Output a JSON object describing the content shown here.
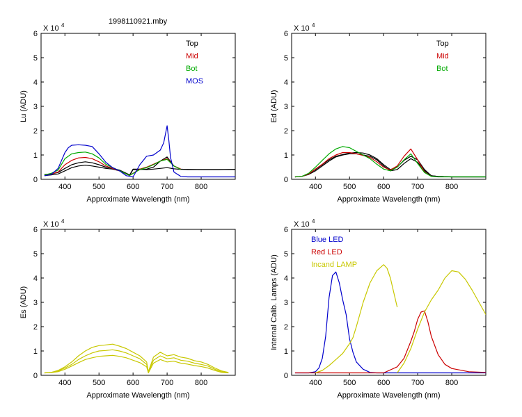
{
  "figure_title": "1998110921.mby",
  "colors": {
    "top": "#000000",
    "mid": "#cc0000",
    "bot": "#00aa00",
    "mos": "#0000cc",
    "es": "#c8c800",
    "blue_led": "#0000cc",
    "red_led": "#cc0000",
    "incand": "#c8c800"
  },
  "chart_data": [
    {
      "id": "lu",
      "type": "line",
      "ylabel": "Lu (ADU)",
      "xlabel": "Approximate Wavelength (nm)",
      "y_exponent_label": "X 10",
      "y_exponent_power": "4",
      "xlim": [
        330,
        900
      ],
      "ylim": [
        0,
        6
      ],
      "xticks": [
        400,
        500,
        600,
        700,
        800
      ],
      "yticks": [
        0,
        1,
        2,
        3,
        4,
        5,
        6
      ],
      "legend_position": "top-right",
      "legend": [
        {
          "label": "Top",
          "color": "#000000"
        },
        {
          "label": "Mid",
          "color": "#cc0000"
        },
        {
          "label": "Bot",
          "color": "#00aa00"
        },
        {
          "label": "MOS",
          "color": "#0000cc"
        }
      ],
      "series": [
        {
          "name": "Top",
          "color": "#000000",
          "x": [
            340,
            360,
            380,
            400,
            420,
            440,
            460,
            480,
            500,
            520,
            540,
            560,
            580,
            590,
            600,
            620,
            640,
            660,
            680,
            700,
            720,
            740,
            760,
            800,
            850,
            900
          ],
          "y": [
            0.2,
            0.22,
            0.28,
            0.45,
            0.6,
            0.68,
            0.72,
            0.68,
            0.6,
            0.5,
            0.45,
            0.38,
            0.25,
            0.18,
            0.42,
            0.42,
            0.4,
            0.42,
            0.45,
            0.48,
            0.43,
            0.41,
            0.41,
            0.4,
            0.4,
            0.41
          ]
        },
        {
          "name": "Top-2",
          "color": "#000000",
          "x": [
            340,
            360,
            380,
            400,
            420,
            440,
            460,
            480,
            500,
            520,
            540,
            560,
            580,
            590,
            600,
            620,
            640,
            660,
            680,
            700,
            720,
            740,
            760,
            800,
            850,
            900
          ],
          "y": [
            0.15,
            0.18,
            0.22,
            0.35,
            0.48,
            0.55,
            0.58,
            0.55,
            0.5,
            0.45,
            0.42,
            0.35,
            0.22,
            0.16,
            0.4,
            0.4,
            0.42,
            0.5,
            0.75,
            0.92,
            0.55,
            0.42,
            0.4,
            0.4,
            0.4,
            0.41
          ]
        },
        {
          "name": "Mid",
          "color": "#cc0000",
          "x": [
            340,
            360,
            380,
            400,
            420,
            440,
            460,
            480,
            500,
            520,
            540,
            560,
            580,
            590,
            620,
            640,
            660,
            680,
            700,
            720,
            740
          ],
          "y": [
            0.18,
            0.22,
            0.3,
            0.6,
            0.78,
            0.88,
            0.9,
            0.85,
            0.72,
            0.55,
            0.45,
            0.35,
            0.22,
            0.16,
            0.42,
            0.5,
            0.62,
            0.75,
            0.85,
            0.55,
            0.42
          ]
        },
        {
          "name": "Bot",
          "color": "#00aa00",
          "x": [
            340,
            360,
            380,
            400,
            420,
            440,
            460,
            480,
            500,
            520,
            540,
            560,
            580,
            590,
            620,
            640,
            660,
            680,
            700,
            720,
            740
          ],
          "y": [
            0.18,
            0.25,
            0.38,
            0.85,
            1.05,
            1.1,
            1.12,
            1.05,
            0.88,
            0.62,
            0.48,
            0.36,
            0.22,
            0.16,
            0.4,
            0.48,
            0.6,
            0.75,
            0.82,
            0.55,
            0.4
          ]
        },
        {
          "name": "MOS",
          "color": "#0000cc",
          "x": [
            340,
            360,
            380,
            400,
            410,
            420,
            440,
            460,
            480,
            500,
            520,
            540,
            560,
            580,
            600,
            620,
            640,
            660,
            680,
            690,
            700,
            705,
            710,
            720,
            740,
            760,
            800,
            850,
            900
          ],
          "y": [
            0.15,
            0.2,
            0.45,
            1.1,
            1.3,
            1.4,
            1.42,
            1.4,
            1.35,
            1.05,
            0.7,
            0.48,
            0.35,
            0.15,
            0.1,
            0.6,
            0.95,
            1.0,
            1.2,
            1.5,
            2.2,
            1.6,
            0.9,
            0.3,
            0.12,
            0.1,
            0.1,
            0.1,
            0.1
          ]
        }
      ]
    },
    {
      "id": "ed",
      "type": "line",
      "ylabel": "Ed  (ADU)",
      "xlabel": "Approximate Wavelength (nm)",
      "y_exponent_label": "X 10",
      "y_exponent_power": "4",
      "xlim": [
        330,
        900
      ],
      "ylim": [
        0,
        6
      ],
      "xticks": [
        400,
        500,
        600,
        700,
        800
      ],
      "yticks": [
        0,
        1,
        2,
        3,
        4,
        5,
        6
      ],
      "legend_position": "top-right",
      "legend": [
        {
          "label": "Top",
          "color": "#000000"
        },
        {
          "label": "Mid",
          "color": "#cc0000"
        },
        {
          "label": "Bot",
          "color": "#00aa00"
        }
      ],
      "series": [
        {
          "name": "Top",
          "color": "#000000",
          "x": [
            340,
            360,
            380,
            400,
            420,
            440,
            460,
            480,
            500,
            520,
            540,
            560,
            580,
            600,
            620,
            640,
            660,
            680,
            700,
            720,
            740,
            760,
            800,
            850,
            900
          ],
          "y": [
            0.1,
            0.12,
            0.2,
            0.35,
            0.55,
            0.75,
            0.92,
            1.0,
            1.05,
            1.05,
            1.0,
            0.95,
            0.8,
            0.55,
            0.35,
            0.4,
            0.65,
            0.85,
            0.7,
            0.35,
            0.15,
            0.12,
            0.1,
            0.1,
            0.1
          ]
        },
        {
          "name": "Top-2",
          "color": "#000000",
          "x": [
            340,
            360,
            380,
            400,
            420,
            440,
            460,
            480,
            500,
            520,
            540,
            560,
            580,
            600,
            620,
            640,
            660,
            680,
            700,
            720,
            740,
            760,
            800,
            850,
            900
          ],
          "y": [
            0.1,
            0.12,
            0.22,
            0.4,
            0.6,
            0.8,
            0.95,
            1.02,
            1.08,
            1.1,
            1.08,
            1.0,
            0.85,
            0.6,
            0.4,
            0.5,
            0.78,
            0.95,
            0.8,
            0.4,
            0.15,
            0.12,
            0.1,
            0.1,
            0.1
          ]
        },
        {
          "name": "Mid",
          "color": "#cc0000",
          "x": [
            340,
            360,
            380,
            400,
            420,
            440,
            460,
            480,
            500,
            520,
            540,
            560,
            580,
            600,
            620,
            640,
            660,
            680,
            700,
            720,
            740
          ],
          "y": [
            0.1,
            0.12,
            0.22,
            0.42,
            0.62,
            0.85,
            1.0,
            1.1,
            1.1,
            1.05,
            0.98,
            0.9,
            0.72,
            0.5,
            0.38,
            0.55,
            0.95,
            1.25,
            0.8,
            0.3,
            0.12
          ]
        },
        {
          "name": "Bot",
          "color": "#00aa00",
          "x": [
            340,
            360,
            380,
            400,
            420,
            440,
            460,
            480,
            500,
            520,
            540,
            560,
            580,
            600,
            620,
            640,
            660,
            680,
            700,
            720,
            740,
            760,
            800,
            850,
            900
          ],
          "y": [
            0.1,
            0.12,
            0.25,
            0.5,
            0.78,
            1.05,
            1.25,
            1.35,
            1.3,
            1.15,
            1.0,
            0.85,
            0.62,
            0.42,
            0.35,
            0.5,
            0.8,
            1.05,
            0.65,
            0.28,
            0.12,
            0.1,
            0.1,
            0.1,
            0.1
          ]
        }
      ]
    },
    {
      "id": "es",
      "type": "line",
      "ylabel": "Es  (ADU)",
      "xlabel": "Approximate Wavelength (nm)",
      "y_exponent_label": "X 10",
      "y_exponent_power": "4",
      "xlim": [
        330,
        900
      ],
      "ylim": [
        0,
        6
      ],
      "xticks": [
        400,
        500,
        600,
        700,
        800
      ],
      "yticks": [
        0,
        1,
        2,
        3,
        4,
        5,
        6
      ],
      "series": [
        {
          "name": "Es",
          "color": "#c8c800",
          "x": [
            340,
            360,
            380,
            400,
            420,
            440,
            460,
            480,
            500,
            520,
            540,
            560,
            580,
            600,
            620,
            640,
            645,
            660,
            680,
            700,
            720,
            740,
            760,
            780,
            800,
            820,
            840,
            860,
            880
          ],
          "y": [
            0.1,
            0.12,
            0.2,
            0.35,
            0.55,
            0.8,
            1.0,
            1.15,
            1.22,
            1.25,
            1.28,
            1.2,
            1.1,
            0.95,
            0.8,
            0.55,
            0.15,
            0.75,
            0.95,
            0.8,
            0.85,
            0.75,
            0.7,
            0.6,
            0.55,
            0.45,
            0.3,
            0.18,
            0.12
          ]
        },
        {
          "name": "Es-2",
          "color": "#c8c800",
          "x": [
            340,
            360,
            380,
            400,
            420,
            440,
            460,
            480,
            500,
            520,
            540,
            560,
            580,
            600,
            620,
            640,
            645,
            660,
            680,
            700,
            720,
            740,
            760,
            780,
            800,
            820,
            840,
            860,
            880
          ],
          "y": [
            0.1,
            0.12,
            0.18,
            0.3,
            0.45,
            0.65,
            0.8,
            0.92,
            1.0,
            1.02,
            1.05,
            1.0,
            0.92,
            0.8,
            0.68,
            0.45,
            0.12,
            0.62,
            0.8,
            0.68,
            0.72,
            0.62,
            0.58,
            0.5,
            0.45,
            0.38,
            0.25,
            0.15,
            0.1
          ]
        },
        {
          "name": "Es-3",
          "color": "#c8c800",
          "x": [
            340,
            360,
            380,
            400,
            420,
            440,
            460,
            480,
            500,
            520,
            540,
            560,
            580,
            600,
            620,
            640,
            645,
            660,
            680,
            700,
            720,
            740,
            760,
            780,
            800,
            820,
            840,
            860,
            880
          ],
          "y": [
            0.1,
            0.11,
            0.15,
            0.25,
            0.38,
            0.52,
            0.65,
            0.72,
            0.78,
            0.8,
            0.82,
            0.78,
            0.72,
            0.62,
            0.52,
            0.35,
            0.1,
            0.5,
            0.65,
            0.55,
            0.58,
            0.5,
            0.46,
            0.4,
            0.36,
            0.3,
            0.2,
            0.12,
            0.1
          ]
        }
      ]
    },
    {
      "id": "lamps",
      "type": "line",
      "ylabel": "Internal Calib. Lamps (ADU)",
      "xlabel": "Approximate Wavelength (nm)",
      "y_exponent_label": "X 10",
      "y_exponent_power": "4",
      "xlim": [
        330,
        900
      ],
      "ylim": [
        0,
        6
      ],
      "xticks": [
        400,
        500,
        600,
        700,
        800
      ],
      "yticks": [
        0,
        1,
        2,
        3,
        4,
        5,
        6
      ],
      "legend_position": "top-left",
      "legend": [
        {
          "label": "Blue LED",
          "color": "#0000cc"
        },
        {
          "label": "Red LED",
          "color": "#cc0000"
        },
        {
          "label": "Incand LAMP",
          "color": "#c8c800"
        }
      ],
      "series": [
        {
          "name": "Blue LED",
          "color": "#0000cc",
          "x": [
            340,
            380,
            400,
            410,
            420,
            430,
            440,
            450,
            460,
            470,
            480,
            490,
            500,
            510,
            520,
            540,
            560,
            580,
            600,
            650,
            700,
            800,
            900
          ],
          "y": [
            0.1,
            0.1,
            0.15,
            0.3,
            0.7,
            1.6,
            3.2,
            4.1,
            4.25,
            3.8,
            3.1,
            2.5,
            1.5,
            0.95,
            0.55,
            0.25,
            0.12,
            0.1,
            0.1,
            0.1,
            0.1,
            0.1,
            0.1
          ]
        },
        {
          "name": "Red LED",
          "color": "#cc0000",
          "x": [
            340,
            500,
            600,
            640,
            660,
            680,
            690,
            700,
            710,
            720,
            730,
            740,
            760,
            780,
            800,
            850,
            900
          ],
          "y": [
            0.1,
            0.1,
            0.1,
            0.35,
            0.7,
            1.4,
            1.8,
            2.3,
            2.6,
            2.65,
            2.2,
            1.6,
            0.85,
            0.45,
            0.28,
            0.15,
            0.12
          ]
        },
        {
          "name": "Incand LAMP a",
          "color": "#c8c800",
          "x": [
            400,
            420,
            440,
            460,
            480,
            500,
            510,
            520,
            540,
            560,
            580,
            600,
            610,
            620,
            630,
            640
          ],
          "y": [
            0.1,
            0.2,
            0.4,
            0.65,
            0.9,
            1.3,
            1.55,
            2.0,
            3.0,
            3.8,
            4.3,
            4.55,
            4.4,
            4.0,
            3.4,
            2.8
          ]
        },
        {
          "name": "Incand LAMP b",
          "color": "#c8c800",
          "x": [
            640,
            660,
            680,
            700,
            720,
            740,
            760,
            780,
            800,
            820,
            840,
            860,
            880,
            900
          ],
          "y": [
            0.1,
            0.5,
            1.1,
            1.9,
            2.6,
            3.1,
            3.5,
            4.0,
            4.3,
            4.25,
            3.95,
            3.5,
            3.0,
            2.5
          ]
        }
      ]
    }
  ]
}
